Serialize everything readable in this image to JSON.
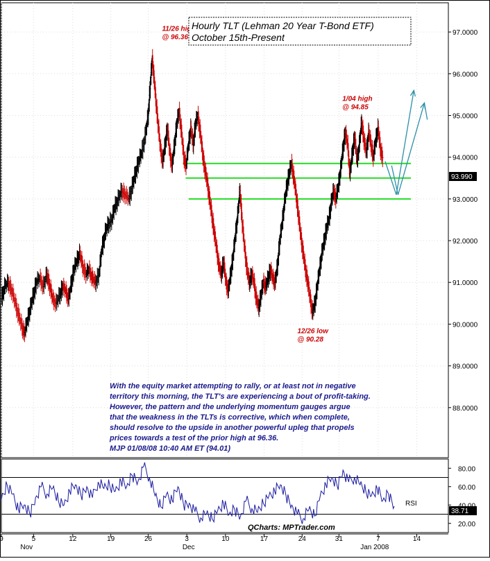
{
  "chart_data": [
    {
      "type": "line",
      "title": "Hourly TLT (Lehman 20 Year T-Bond ETF)",
      "subtitle": "October 15th-Present",
      "ylim": [
        86.8,
        97.7
      ],
      "yticks": [
        "97.0000",
        "96.0000",
        "95.0000",
        "94.0000",
        "93.0000",
        "92.0000",
        "91.0000",
        "90.0000",
        "89.0000",
        "88.0000"
      ],
      "ytick_values": [
        97,
        96,
        95,
        94,
        93,
        92,
        91,
        90,
        89,
        88
      ],
      "last_price_label": "93.990",
      "last_price": 93.99,
      "xticks": [
        "9",
        "5",
        "12",
        "19",
        "26",
        "3",
        "10",
        "17",
        "24",
        "31",
        "7",
        "14"
      ],
      "xtick_values": [
        0,
        5.5,
        12.2,
        18.7,
        25.1,
        31.7,
        38.3,
        44.9,
        51.4,
        57.7,
        64.4,
        71.0
      ],
      "month_labels": [
        {
          "label": "Nov",
          "x": 4.3
        },
        {
          "label": "Dec",
          "x": 32.0
        },
        {
          "label": "Jan 2008",
          "x": 63.8
        }
      ],
      "xlim": [
        0,
        76.4
      ],
      "series": [
        {
          "values": [
            [
              0,
              90.6
            ],
            [
              0.6,
              90.9
            ],
            [
              1.2,
              91.0
            ],
            [
              1.8,
              90.8
            ],
            [
              2.4,
              90.5
            ],
            [
              3.0,
              90.2
            ],
            [
              3.6,
              89.9
            ],
            [
              4.0,
              89.8
            ],
            [
              4.5,
              90.1
            ],
            [
              5.0,
              90.4
            ],
            [
              5.5,
              90.7
            ],
            [
              6.0,
              91.0
            ],
            [
              6.6,
              91.1
            ],
            [
              7.2,
              90.9
            ],
            [
              7.8,
              91.2
            ],
            [
              8.3,
              90.9
            ],
            [
              8.8,
              90.6
            ],
            [
              9.4,
              90.5
            ],
            [
              10.0,
              90.7
            ],
            [
              10.5,
              90.9
            ],
            [
              11.0,
              90.8
            ],
            [
              11.5,
              90.6
            ],
            [
              12.0,
              91.0
            ],
            [
              12.4,
              91.3
            ],
            [
              12.9,
              91.5
            ],
            [
              13.4,
              91.7
            ],
            [
              13.9,
              91.4
            ],
            [
              14.5,
              91.2
            ],
            [
              15.0,
              91.3
            ],
            [
              15.6,
              91.1
            ],
            [
              16.1,
              91.0
            ],
            [
              16.7,
              91.2
            ],
            [
              17.2,
              91.8
            ],
            [
              17.8,
              92.2
            ],
            [
              18.3,
              92.4
            ],
            [
              18.9,
              92.5
            ],
            [
              19.4,
              92.8
            ],
            [
              20.0,
              93.0
            ],
            [
              20.6,
              93.2
            ],
            [
              21.2,
              93.1
            ],
            [
              21.8,
              93.0
            ],
            [
              22.4,
              93.3
            ],
            [
              22.9,
              93.6
            ],
            [
              23.5,
              93.9
            ],
            [
              24.0,
              94.1
            ],
            [
              24.6,
              94.5
            ],
            [
              25.1,
              95.0
            ],
            [
              25.5,
              95.8
            ],
            [
              25.8,
              96.36
            ],
            [
              26.1,
              95.9
            ],
            [
              26.4,
              95.4
            ],
            [
              26.8,
              94.8
            ],
            [
              27.2,
              94.2
            ],
            [
              27.6,
              93.9
            ],
            [
              28.0,
              94.3
            ],
            [
              28.4,
              94.7
            ],
            [
              28.8,
              94.1
            ],
            [
              29.2,
              93.8
            ],
            [
              29.6,
              94.3
            ],
            [
              30.0,
              94.8
            ],
            [
              30.4,
              95.1
            ],
            [
              30.8,
              94.6
            ],
            [
              31.2,
              94.0
            ],
            [
              31.6,
              93.8
            ],
            [
              32.0,
              94.3
            ],
            [
              32.4,
              94.7
            ],
            [
              32.8,
              94.3
            ],
            [
              33.2,
              94.8
            ],
            [
              33.6,
              95.0
            ],
            [
              34.0,
              94.6
            ],
            [
              34.4,
              94.1
            ],
            [
              34.8,
              93.7
            ],
            [
              35.2,
              93.4
            ],
            [
              35.6,
              93.0
            ],
            [
              36.0,
              92.6
            ],
            [
              36.4,
              92.2
            ],
            [
              36.8,
              91.8
            ],
            [
              37.2,
              91.4
            ],
            [
              37.6,
              91.2
            ],
            [
              38.0,
              91.5
            ],
            [
              38.4,
              91.0
            ],
            [
              38.8,
              90.8
            ],
            [
              39.2,
              91.2
            ],
            [
              39.6,
              91.6
            ],
            [
              40.0,
              92.1
            ],
            [
              40.4,
              92.6
            ],
            [
              40.8,
              93.2
            ],
            [
              41.2,
              92.4
            ],
            [
              41.6,
              91.8
            ],
            [
              42.0,
              91.3
            ],
            [
              42.4,
              91.0
            ],
            [
              42.8,
              91.2
            ],
            [
              43.2,
              91.0
            ],
            [
              43.6,
              90.6
            ],
            [
              44.0,
              90.4
            ],
            [
              44.4,
              90.7
            ],
            [
              44.8,
              91.0
            ],
            [
              45.2,
              90.9
            ],
            [
              45.6,
              91.1
            ],
            [
              46.0,
              91.3
            ],
            [
              46.4,
              91.1
            ],
            [
              46.8,
              91.0
            ],
            [
              47.2,
              91.4
            ],
            [
              47.6,
              92.0
            ],
            [
              48.0,
              92.4
            ],
            [
              48.4,
              92.9
            ],
            [
              48.8,
              93.3
            ],
            [
              49.2,
              93.6
            ],
            [
              49.6,
              93.85
            ],
            [
              50.0,
              93.5
            ],
            [
              50.4,
              93.1
            ],
            [
              50.8,
              92.6
            ],
            [
              51.2,
              92.1
            ],
            [
              51.6,
              91.7
            ],
            [
              52.0,
              91.3
            ],
            [
              52.4,
              91.0
            ],
            [
              52.8,
              90.6
            ],
            [
              53.2,
              90.28
            ],
            [
              53.6,
              90.5
            ],
            [
              54.0,
              90.9
            ],
            [
              54.4,
              91.3
            ],
            [
              54.8,
              91.7
            ],
            [
              55.2,
              92.0
            ],
            [
              55.6,
              92.3
            ],
            [
              56.0,
              92.5
            ],
            [
              56.4,
              92.9
            ],
            [
              56.8,
              93.2
            ],
            [
              57.2,
              93.0
            ],
            [
              57.6,
              93.3
            ],
            [
              58.0,
              93.7
            ],
            [
              58.4,
              94.2
            ],
            [
              58.8,
              94.6
            ],
            [
              59.2,
              94.3
            ],
            [
              59.6,
              93.6
            ],
            [
              60.0,
              94.1
            ],
            [
              60.4,
              94.5
            ],
            [
              60.8,
              93.9
            ],
            [
              61.2,
              94.3
            ],
            [
              61.6,
              94.85
            ],
            [
              62.0,
              94.4
            ],
            [
              62.4,
              94.1
            ],
            [
              62.8,
              94.6
            ],
            [
              63.2,
              94.3
            ],
            [
              63.6,
              94.0
            ],
            [
              64.0,
              94.4
            ],
            [
              64.4,
              94.7
            ],
            [
              64.8,
              94.2
            ],
            [
              65.2,
              93.99
            ]
          ]
        }
      ],
      "support_lines": [
        93.85,
        93.5,
        93.0
      ],
      "support_ranges": [
        [
          31.0,
          70.0
        ],
        [
          31.5,
          70.0
        ],
        [
          32.0,
          70.0
        ]
      ],
      "annotations": [
        {
          "text1": "11/26 high",
          "text2": "@ 96.36",
          "x": 25.8,
          "y": 96.36
        },
        {
          "text1": "1/04 high",
          "text2": "@ 94.85",
          "x": 61.6,
          "y": 94.85
        },
        {
          "text1": "12/26 low",
          "text2": "@ 90.28",
          "x": 53.2,
          "y": 90.28
        }
      ],
      "projection_1": [
        [
          65.6,
          93.9
        ],
        [
          67.5,
          93.1
        ],
        [
          70.5,
          95.6
        ]
      ],
      "projection_2": [
        [
          66.7,
          93.8
        ],
        [
          67.8,
          93.1
        ],
        [
          72.3,
          95.3
        ],
        [
          72.8,
          94.9
        ]
      ],
      "commentary": [
        "With the equity market attempting to rally, or at least not in negative",
        "territory this morning, the TLT's are experiencing a bout of profit-taking.",
        "However, the pattern and the underlying momentum gauges argue",
        "that the weakness in the TLTs is corrective, which when complete,",
        "should resolve to the upside in another powerful upleg that propels",
        "prices towards a test of the prior high at 96.36.",
        "MJP  01/08/08  10:40 AM ET  (94.01)"
      ]
    },
    {
      "type": "line",
      "name": "RSI",
      "ylim": [
        10,
        90
      ],
      "yticks": [
        "80.00",
        "60.00",
        "40.00",
        "20.00"
      ],
      "ytick_values": [
        80,
        60,
        40,
        20
      ],
      "last_value_label": "38.71",
      "last_value": 38.71,
      "reference_lines": [
        70,
        30
      ],
      "credit": "QCharts: MPTrader.com",
      "values": [
        [
          0,
          45
        ],
        [
          1,
          62
        ],
        [
          2,
          52
        ],
        [
          3,
          35
        ],
        [
          4,
          40
        ],
        [
          5,
          30
        ],
        [
          6,
          48
        ],
        [
          7,
          60
        ],
        [
          8,
          52
        ],
        [
          9,
          58
        ],
        [
          10,
          45
        ],
        [
          11,
          40
        ],
        [
          12,
          55
        ],
        [
          13,
          62
        ],
        [
          14,
          50
        ],
        [
          15,
          60
        ],
        [
          16,
          48
        ],
        [
          17,
          65
        ],
        [
          18,
          58
        ],
        [
          19,
          62
        ],
        [
          20,
          55
        ],
        [
          21,
          66
        ],
        [
          22,
          60
        ],
        [
          23,
          72
        ],
        [
          24,
          66
        ],
        [
          25,
          82
        ],
        [
          26,
          70
        ],
        [
          27,
          50
        ],
        [
          28,
          38
        ],
        [
          29,
          52
        ],
        [
          30,
          45
        ],
        [
          31,
          60
        ],
        [
          32,
          40
        ],
        [
          33,
          42
        ],
        [
          34,
          33
        ],
        [
          35,
          26
        ],
        [
          36,
          30
        ],
        [
          37,
          25
        ],
        [
          38,
          34
        ],
        [
          39,
          42
        ],
        [
          40,
          30
        ],
        [
          41,
          35
        ],
        [
          42,
          28
        ],
        [
          43,
          45
        ],
        [
          44,
          36
        ],
        [
          45,
          32
        ],
        [
          46,
          42
        ],
        [
          47,
          50
        ],
        [
          48,
          55
        ],
        [
          49,
          62
        ],
        [
          50,
          50
        ],
        [
          51,
          40
        ],
        [
          52,
          30
        ],
        [
          53,
          25
        ],
        [
          54,
          35
        ],
        [
          55,
          28
        ],
        [
          56,
          50
        ],
        [
          57,
          62
        ],
        [
          58,
          70
        ],
        [
          59,
          60
        ],
        [
          60,
          78
        ],
        [
          61,
          65
        ],
        [
          62,
          70
        ],
        [
          63,
          62
        ],
        [
          64,
          55
        ],
        [
          65,
          50
        ],
        [
          66,
          58
        ],
        [
          67,
          45
        ],
        [
          68,
          52
        ],
        [
          69,
          38.71
        ]
      ]
    }
  ]
}
